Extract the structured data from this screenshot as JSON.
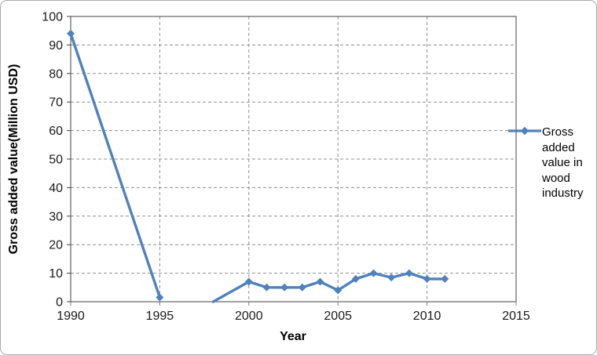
{
  "window": {
    "background": "#FFFFFF",
    "border_color": "#ABABAB"
  },
  "chart_data": {
    "type": "line",
    "title": "",
    "xlabel": "Year",
    "ylabel": "Gross added value(Million USD)",
    "xlim": [
      1990,
      2015
    ],
    "ylim": [
      0,
      100
    ],
    "x_ticks": [
      1990,
      1995,
      2000,
      2005,
      2010,
      2015
    ],
    "y_ticks": [
      0,
      10,
      20,
      30,
      40,
      50,
      60,
      70,
      80,
      90,
      100
    ],
    "grid": {
      "horizontal": "dashed",
      "vertical": "dashed"
    },
    "legend": {
      "position": "right",
      "label": "Gross added value in wood industry",
      "lines": [
        "Gross",
        "added",
        "value in",
        "wood",
        "industry"
      ]
    },
    "series": [
      {
        "name": "Gross added value in wood industry",
        "color": "#4F81BD",
        "marker": "diamond",
        "points": [
          {
            "x": 1990,
            "y": 94
          },
          {
            "x": 1995,
            "y": 1.5
          },
          {
            "x": 1998,
            "y": 0,
            "marker": false,
            "gap_before": true
          },
          {
            "x": 2000,
            "y": 7
          },
          {
            "x": 2001,
            "y": 5
          },
          {
            "x": 2002,
            "y": 5
          },
          {
            "x": 2003,
            "y": 5
          },
          {
            "x": 2004,
            "y": 7
          },
          {
            "x": 2005,
            "y": 4
          },
          {
            "x": 2006,
            "y": 8
          },
          {
            "x": 2007,
            "y": 10
          },
          {
            "x": 2008,
            "y": 8.5
          },
          {
            "x": 2009,
            "y": 10
          },
          {
            "x": 2010,
            "y": 8
          },
          {
            "x": 2011,
            "y": 8
          }
        ]
      }
    ],
    "colors": {
      "series": "#4F81BD",
      "gridline": "#8F8F8F",
      "axis_dark": "#404040",
      "axis_light": "#808080",
      "text": "#000000"
    }
  }
}
